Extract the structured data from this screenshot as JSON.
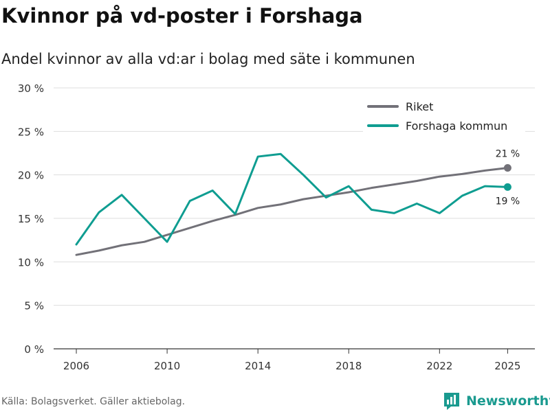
{
  "title": "Kvinnor på vd-poster i Forshaga",
  "subtitle": "Andel kvinnor av alla vd:ar i bolag med säte i kommunen",
  "source": "Källa: Bolagsverket. Gäller aktiebolag.",
  "brand": "Newsworthy",
  "chart_data": {
    "type": "line",
    "title": "Kvinnor på vd-poster i Forshaga",
    "subtitle": "Andel kvinnor av alla vd:ar i bolag med säte i kommunen",
    "xlabel": "",
    "ylabel": "",
    "x": [
      2006,
      2007,
      2008,
      2009,
      2010,
      2011,
      2012,
      2013,
      2014,
      2015,
      2016,
      2017,
      2018,
      2019,
      2020,
      2021,
      2022,
      2023,
      2024,
      2025
    ],
    "xticks": [
      2006,
      2010,
      2014,
      2018,
      2022,
      2025
    ],
    "xtick_labels": [
      "2006",
      "2010",
      "2014",
      "2018",
      "2022",
      "2025"
    ],
    "ylim": [
      0,
      30
    ],
    "yticks": [
      0,
      5,
      10,
      15,
      20,
      25,
      30
    ],
    "ytick_labels": [
      "0 %",
      "5 %",
      "10 %",
      "15 %",
      "20 %",
      "25 %",
      "30 %"
    ],
    "grid": true,
    "legend_position": "top-right",
    "series": [
      {
        "name": "Riket",
        "color": "#727178",
        "values": [
          10.8,
          11.3,
          11.9,
          12.3,
          13.1,
          13.9,
          14.7,
          15.4,
          16.2,
          16.6,
          17.2,
          17.6,
          18.0,
          18.5,
          18.9,
          19.3,
          19.8,
          20.1,
          20.5,
          20.8
        ],
        "end_label": "21 %"
      },
      {
        "name": "Forshaga kommun",
        "color": "#0f9d91",
        "values": [
          12.0,
          15.7,
          17.7,
          15.0,
          12.3,
          17.0,
          18.2,
          15.5,
          22.1,
          22.4,
          20.0,
          17.4,
          18.7,
          16.0,
          15.6,
          16.7,
          15.6,
          17.6,
          18.7,
          18.6
        ],
        "end_label": "19 %"
      }
    ]
  }
}
